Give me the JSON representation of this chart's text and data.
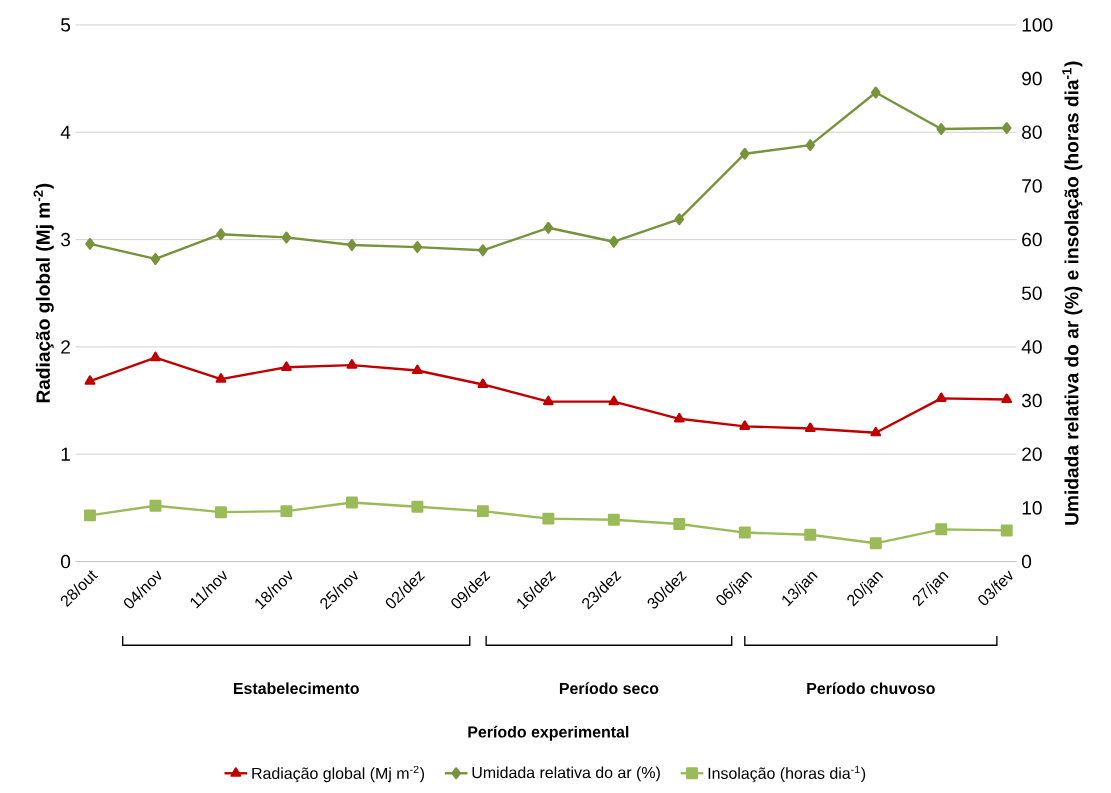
{
  "chart_data": {
    "type": "line",
    "ylabel": "Radiação global (Mj m$^{-2}$)",
    "y2label": "Umidada relativa do ar (%) e insolação (horas dia$^{-1}$)",
    "categories": [
      "28/out",
      "04/nov",
      "11/nov",
      "18/nov",
      "25/nov",
      "02/dez",
      "09/dez",
      "16/dez",
      "23/dez",
      "30/dez",
      "06/jan",
      "13/jan",
      "20/jan",
      "27/jan",
      "03/fev"
    ],
    "series": [
      {
        "name": "Radiação global (Mj m$^{-2}$)",
        "color": "#c00000",
        "marker": "triangle",
        "axis": "y",
        "values": [
          1.68,
          1.9,
          1.7,
          1.81,
          1.83,
          1.78,
          1.65,
          1.49,
          1.49,
          1.33,
          1.26,
          1.24,
          1.2,
          1.52,
          1.51
        ]
      },
      {
        "name": "Umidada relativa do ar (%)",
        "color": "#77933c",
        "marker": "diamond",
        "axis": "y2",
        "values": [
          59.2,
          56.4,
          61,
          60.4,
          59,
          58.6,
          58,
          62.2,
          59.6,
          63.8,
          76,
          77.6,
          87.4,
          80.6,
          80.8
        ]
      },
      {
        "name": "Insolação (horas dia$^{-1}$)",
        "color": "#9bbb59",
        "marker": "square",
        "axis": "y2",
        "values": [
          8.6,
          10.4,
          9.2,
          9.4,
          11,
          10.2,
          9.4,
          8,
          7.8,
          7,
          5.4,
          5,
          3.4,
          6,
          5.8
        ]
      }
    ],
    "ylim": [
      0,
      5
    ],
    "yticks": [
      0,
      1,
      2,
      3,
      4,
      5
    ],
    "y2lim": [
      0,
      100
    ],
    "y2ticks": [
      0,
      10,
      20,
      30,
      40,
      50,
      60,
      70,
      80,
      90,
      100
    ],
    "grid": "y",
    "legend": "bottom",
    "line_style": "solid",
    "annotations": [
      "Estabelecimento",
      "Período seco",
      "Período chuvoso",
      "Período experimental"
    ]
  }
}
